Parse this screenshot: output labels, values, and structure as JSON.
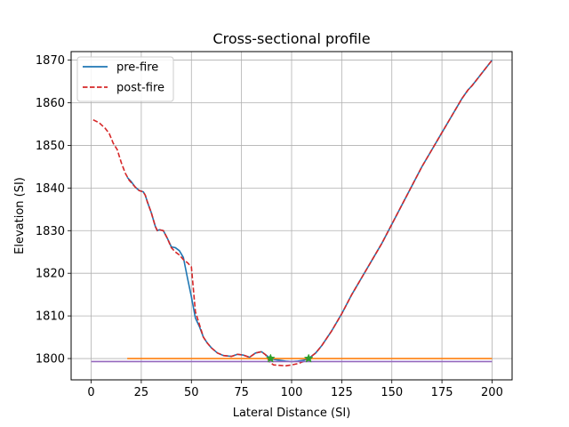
{
  "chart_data": {
    "type": "line",
    "title": "Cross-sectional profile",
    "xlabel": "Lateral Distance (SI)",
    "ylabel": "Elevation (SI)",
    "xlim": [
      -10,
      210
    ],
    "ylim": [
      1795,
      1872
    ],
    "xticks": [
      0,
      25,
      50,
      75,
      100,
      125,
      150,
      175,
      200
    ],
    "yticks": [
      1800,
      1810,
      1820,
      1830,
      1840,
      1850,
      1860,
      1870
    ],
    "grid": true,
    "legend_position": "top-left",
    "series": [
      {
        "name": "pre-fire",
        "color": "#1f77b4",
        "style": "solid",
        "x": [
          18,
          20,
          22,
          24,
          26,
          27,
          28,
          30,
          32,
          33,
          34,
          36,
          38,
          40,
          42,
          44,
          46,
          48,
          50,
          52,
          54,
          56,
          58,
          60,
          63,
          66,
          70,
          73,
          76,
          79,
          82,
          85,
          87,
          89,
          91,
          94,
          97,
          100,
          103,
          106,
          109,
          112,
          115,
          120,
          125,
          130,
          135,
          140,
          145,
          150,
          155,
          160,
          165,
          170,
          175,
          180,
          185,
          188,
          190,
          195,
          200
        ],
        "y": [
          1842.5,
          1841.5,
          1840.2,
          1839.4,
          1839.1,
          1838.3,
          1836.8,
          1834.2,
          1831.0,
          1830.0,
          1830.2,
          1830.0,
          1828.2,
          1826.2,
          1826.0,
          1825.3,
          1823.7,
          1819.0,
          1814.5,
          1809.5,
          1807.5,
          1805.0,
          1803.6,
          1802.5,
          1801.3,
          1800.7,
          1800.5,
          1801.0,
          1800.8,
          1800.3,
          1801.3,
          1801.6,
          1800.9,
          1800.2,
          1799.8,
          1799.6,
          1799.4,
          1799.3,
          1799.4,
          1799.6,
          1800.2,
          1801.3,
          1803.0,
          1806.5,
          1810.5,
          1815.0,
          1819.0,
          1823.0,
          1827.0,
          1831.5,
          1836.0,
          1840.5,
          1845.0,
          1849.0,
          1853.0,
          1857.0,
          1861.0,
          1863.0,
          1864.0,
          1867.0,
          1870.0
        ]
      },
      {
        "name": "post-fire",
        "color": "#d62728",
        "style": "dashed",
        "x": [
          1,
          4,
          7,
          9,
          11,
          13,
          15,
          17,
          19,
          22,
          24,
          26,
          27,
          28,
          30,
          32,
          33,
          34,
          36,
          38,
          40,
          42,
          44,
          46,
          48,
          50,
          52,
          54,
          56,
          58,
          60,
          63,
          66,
          70,
          73,
          76,
          79,
          82,
          85,
          87,
          89,
          91,
          94,
          97,
          100,
          103,
          106,
          109,
          112,
          115,
          120,
          125,
          130,
          135,
          140,
          145,
          150,
          155,
          160,
          165,
          170,
          175,
          180,
          185,
          188,
          190,
          195,
          200
        ],
        "y": [
          1856.0,
          1855.3,
          1854.0,
          1852.8,
          1850.5,
          1849.0,
          1846.0,
          1843.5,
          1841.8,
          1840.2,
          1839.4,
          1839.1,
          1838.3,
          1836.8,
          1834.2,
          1831.0,
          1830.0,
          1830.2,
          1830.0,
          1828.2,
          1826.0,
          1825.0,
          1824.3,
          1823.2,
          1822.5,
          1821.5,
          1811.0,
          1808.0,
          1805.0,
          1803.6,
          1802.5,
          1801.3,
          1800.7,
          1800.5,
          1801.0,
          1800.8,
          1800.3,
          1801.3,
          1801.6,
          1800.9,
          1799.2,
          1798.5,
          1798.4,
          1798.3,
          1798.5,
          1798.8,
          1799.3,
          1800.2,
          1801.3,
          1803.0,
          1806.5,
          1810.5,
          1815.0,
          1819.0,
          1823.0,
          1827.0,
          1831.5,
          1836.0,
          1840.5,
          1845.0,
          1849.0,
          1853.0,
          1857.0,
          1861.0,
          1863.0,
          1864.0,
          1867.0,
          1870.0
        ]
      },
      {
        "color": "#ff7f0e",
        "style": "solid",
        "x": [
          18,
          200
        ],
        "y": [
          1800.0,
          1800.0
        ]
      },
      {
        "color": "#9467bd",
        "style": "solid",
        "x": [
          0,
          200
        ],
        "y": [
          1799.3,
          1799.3
        ]
      }
    ],
    "markers": {
      "color": "#2ca02c",
      "symbol": "star",
      "x": [
        89.5,
        108.5
      ],
      "y": [
        1800.0,
        1800.0
      ]
    }
  }
}
